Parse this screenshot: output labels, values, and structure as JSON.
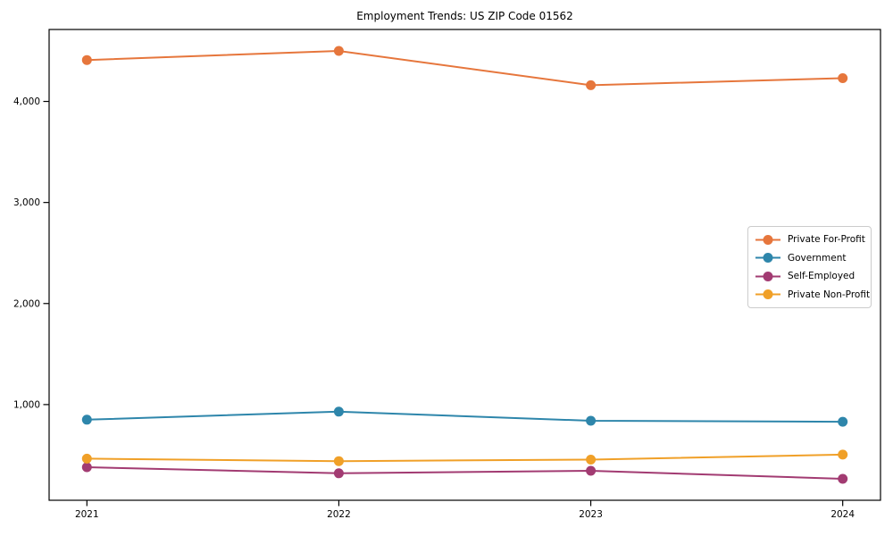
{
  "page": {
    "background_color": "#ffffff",
    "axis_color": "#000000",
    "legend_border_color": "#cccccc"
  },
  "chart_data": {
    "type": "line",
    "title": "Employment Trends: US ZIP Code 01562",
    "xlabel": "",
    "ylabel": "",
    "x": [
      2021,
      2022,
      2023,
      2024
    ],
    "x_tick_labels": [
      "2021",
      "2022",
      "2023",
      "2024"
    ],
    "y_ticks": [
      {
        "value": 1000,
        "label": "1,000"
      },
      {
        "value": 2000,
        "label": "2,000"
      },
      {
        "value": 3000,
        "label": "3,000"
      },
      {
        "value": 4000,
        "label": "4,000"
      }
    ],
    "series": [
      {
        "name": "Private For-Profit",
        "color": "#E6763C",
        "values": [
          4410,
          4500,
          4160,
          4230
        ]
      },
      {
        "name": "Government",
        "color": "#2E86AB",
        "values": [
          850,
          930,
          840,
          830
        ]
      },
      {
        "name": "Self-Employed",
        "color": "#A23B72",
        "values": [
          380,
          320,
          345,
          265
        ]
      },
      {
        "name": "Private Non-Profit",
        "color": "#F0A028",
        "values": [
          465,
          440,
          455,
          505
        ]
      }
    ],
    "xlim": [
      2020.85,
      2024.15
    ],
    "ylim": [
      53,
      4712
    ],
    "grid": false,
    "legend_position": "center-right",
    "line_width": 2,
    "marker": "circle",
    "marker_size": 5.5
  }
}
